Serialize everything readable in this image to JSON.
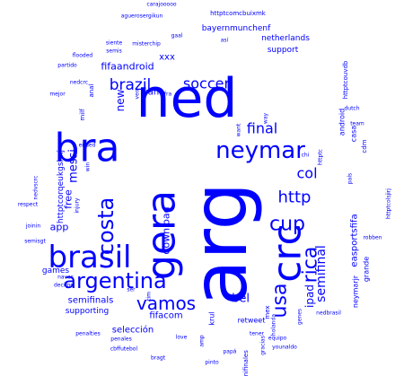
{
  "colors": {
    "background": "#ffffff",
    "words": "#0000ff"
  },
  "words": [
    {
      "text": "arg",
      "weight": 100
    },
    {
      "text": "ned",
      "weight": 62
    },
    {
      "text": "crc",
      "weight": 50
    },
    {
      "text": "gera",
      "weight": 50
    },
    {
      "text": "bra",
      "weight": 50
    },
    {
      "text": "brasil",
      "weight": 38
    },
    {
      "text": "argentina",
      "weight": 27
    },
    {
      "text": "neymar",
      "weight": 26
    },
    {
      "text": "costa",
      "weight": 25
    },
    {
      "text": "cup",
      "weight": 24
    },
    {
      "text": "usa",
      "weight": 23
    },
    {
      "text": "rica",
      "weight": 23
    },
    {
      "text": "vamos",
      "weight": 20
    },
    {
      "text": "http",
      "weight": 19
    },
    {
      "text": "brazil",
      "weight": 17
    },
    {
      "text": "soccer",
      "weight": 16
    },
    {
      "text": "final",
      "weight": 16
    },
    {
      "text": "col",
      "weight": 16
    },
    {
      "text": "semifinal",
      "weight": 14
    },
    {
      "text": "bel",
      "weight": 13
    },
    {
      "text": "messi",
      "weight": 12
    },
    {
      "text": "new",
      "weight": 12
    },
    {
      "text": "ipad",
      "weight": 12
    },
    {
      "text": "fifaandroid",
      "weight": 11
    },
    {
      "text": "download",
      "weight": 11
    },
    {
      "text": "app",
      "weight": 11
    },
    {
      "text": "free",
      "weight": 11
    },
    {
      "text": "xxx",
      "weight": 10
    },
    {
      "text": "van",
      "weight": 10
    },
    {
      "text": "fifacom",
      "weight": 10
    },
    {
      "text": "semifinals",
      "weight": 10
    },
    {
      "text": "selección",
      "weight": 10
    },
    {
      "text": "easportsfifa",
      "weight": 10
    },
    {
      "text": "games",
      "weight": 9
    },
    {
      "text": "supporting",
      "weight": 9
    },
    {
      "text": "netherlands",
      "weight": 9
    },
    {
      "text": "support",
      "weight": 9
    },
    {
      "text": "httptcorqeukgshxj",
      "weight": 9
    },
    {
      "text": "bayernmunchenf",
      "weight": 9
    },
    {
      "text": "neymarjr",
      "weight": 8
    },
    {
      "text": "retweet",
      "weight": 8
    },
    {
      "text": "android",
      "weight": 8
    },
    {
      "text": "krul",
      "weight": 8
    },
    {
      "text": "grande",
      "weight": 8
    },
    {
      "text": "casa",
      "weight": 8
    },
    {
      "text": "cdm",
      "weight": 7
    },
    {
      "text": "milf",
      "weight": 7
    },
    {
      "text": "semifinales",
      "weight": 7
    },
    {
      "text": "mex",
      "weight": 7
    },
    {
      "text": "anal",
      "weight": 7
    },
    {
      "text": "httptcomcbuixmk",
      "weight": 7
    },
    {
      "text": "httptcouvdb",
      "weight": 7
    },
    {
      "text": "misterchip",
      "weight": 6
    },
    {
      "text": "gaal",
      "weight": 6
    },
    {
      "text": "así",
      "weight": 6
    },
    {
      "text": "siente",
      "weight": 6
    },
    {
      "text": "semis",
      "weight": 6
    },
    {
      "text": "partido",
      "weight": 6
    },
    {
      "text": "mejor",
      "weight": 6
    },
    {
      "text": "flooded",
      "weight": 6
    },
    {
      "text": "nedcrc",
      "weight": 6
    },
    {
      "text": "fra",
      "weight": 6
    },
    {
      "text": "veo",
      "weight": 6
    },
    {
      "text": "aguerosergikun",
      "weight": 6
    },
    {
      "text": "carajooooo",
      "weight": 6
    },
    {
      "text": "dutch",
      "weight": 6
    },
    {
      "text": "team",
      "weight": 6
    },
    {
      "text": "way",
      "weight": 6
    },
    {
      "text": "want",
      "weight": 6
    },
    {
      "text": "chi",
      "weight": 6
    },
    {
      "text": "httptc",
      "weight": 6
    },
    {
      "text": "país",
      "weight": 6
    },
    {
      "text": "httptcolsjirj",
      "weight": 6
    },
    {
      "text": "robben",
      "weight": 6
    },
    {
      "text": "ended",
      "weight": 6
    },
    {
      "text": "win",
      "weight": 6
    },
    {
      "text": "injury",
      "weight": 6
    },
    {
      "text": "nedvscrc",
      "weight": 6
    },
    {
      "text": "respect",
      "weight": 6
    },
    {
      "text": "joinin",
      "weight": 6
    },
    {
      "text": "semisgt",
      "weight": 6
    },
    {
      "text": "navas",
      "weight": 6
    },
    {
      "text": "decime",
      "weight": 6
    },
    {
      "text": "ser",
      "weight": 6
    },
    {
      "text": "tim",
      "weight": 6
    },
    {
      "text": "penalties",
      "weight": 6
    },
    {
      "text": "penales",
      "weight": 6
    },
    {
      "text": "cbffutebol",
      "weight": 6
    },
    {
      "text": "bragt",
      "weight": 6
    },
    {
      "text": "love",
      "weight": 6
    },
    {
      "text": "amp",
      "weight": 6
    },
    {
      "text": "pinto",
      "weight": 6
    },
    {
      "text": "papá",
      "weight": 6
    },
    {
      "text": "gracias",
      "weight": 6
    },
    {
      "text": "equipo",
      "weight": 6
    },
    {
      "text": "younaldo",
      "weight": 6
    },
    {
      "text": "tener",
      "weight": 6
    },
    {
      "text": "holanda",
      "weight": 6
    },
    {
      "text": "genes",
      "weight": 6
    },
    {
      "text": "nedbrasil",
      "weight": 6
    }
  ]
}
